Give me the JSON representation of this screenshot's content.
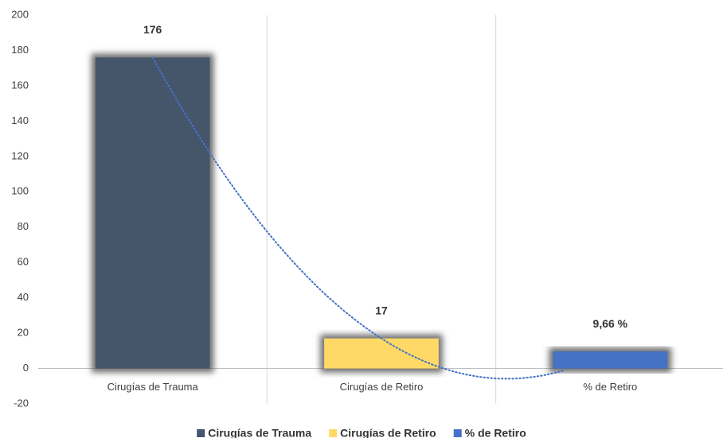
{
  "chart_data": {
    "type": "bar",
    "categories": [
      "Cirugías de Trauma",
      "Cirugías de Retiro",
      "% de Retiro"
    ],
    "values": [
      176,
      17,
      9.66
    ],
    "value_labels": [
      "176",
      "17",
      "9,66 %"
    ],
    "colors": [
      "#44546a",
      "#ffd966",
      "#4472c4"
    ],
    "ylim": [
      -20,
      200
    ],
    "yticks": [
      -20,
      0,
      20,
      40,
      60,
      80,
      100,
      120,
      140,
      160,
      180,
      200
    ],
    "grid": false,
    "legend": "bottom",
    "trendline": {
      "type": "polynomial",
      "order": 2,
      "color": "#4472c4",
      "style": "dotted"
    }
  }
}
